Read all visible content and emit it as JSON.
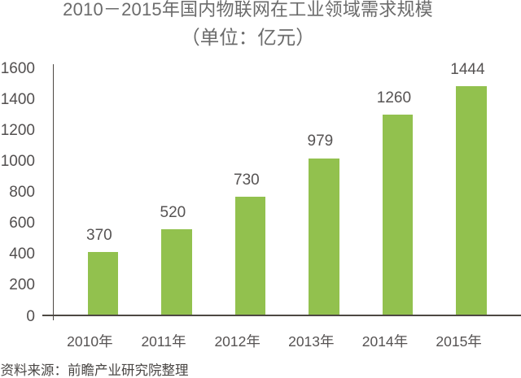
{
  "chart_data": {
    "type": "bar",
    "title": "2010－2015年国内物联网在工业领域需求规模",
    "subtitle": "（单位：亿元）",
    "unit": "亿元",
    "categories": [
      "2010年",
      "2011年",
      "2012年",
      "2013年",
      "2014年",
      "2015年"
    ],
    "values": [
      370,
      520,
      730,
      979,
      1260,
      1444
    ],
    "xlabel": "",
    "ylabel": "",
    "ylim": [
      0,
      1600
    ],
    "ytick_step": 200,
    "yticks": [
      0,
      200,
      400,
      600,
      800,
      1000,
      1200,
      1400,
      1600
    ],
    "grid": false,
    "legend": "none",
    "bar_color": "#92c14e"
  },
  "source_note": "资料来源：前瞻产业研究院整理",
  "colors": {
    "background": "#ffffff",
    "bar": "#92c14e",
    "title_text": "#6e6e6e",
    "axis_text": "#524f4f",
    "axis_line": "#4d4843",
    "source_text": "#454242"
  }
}
